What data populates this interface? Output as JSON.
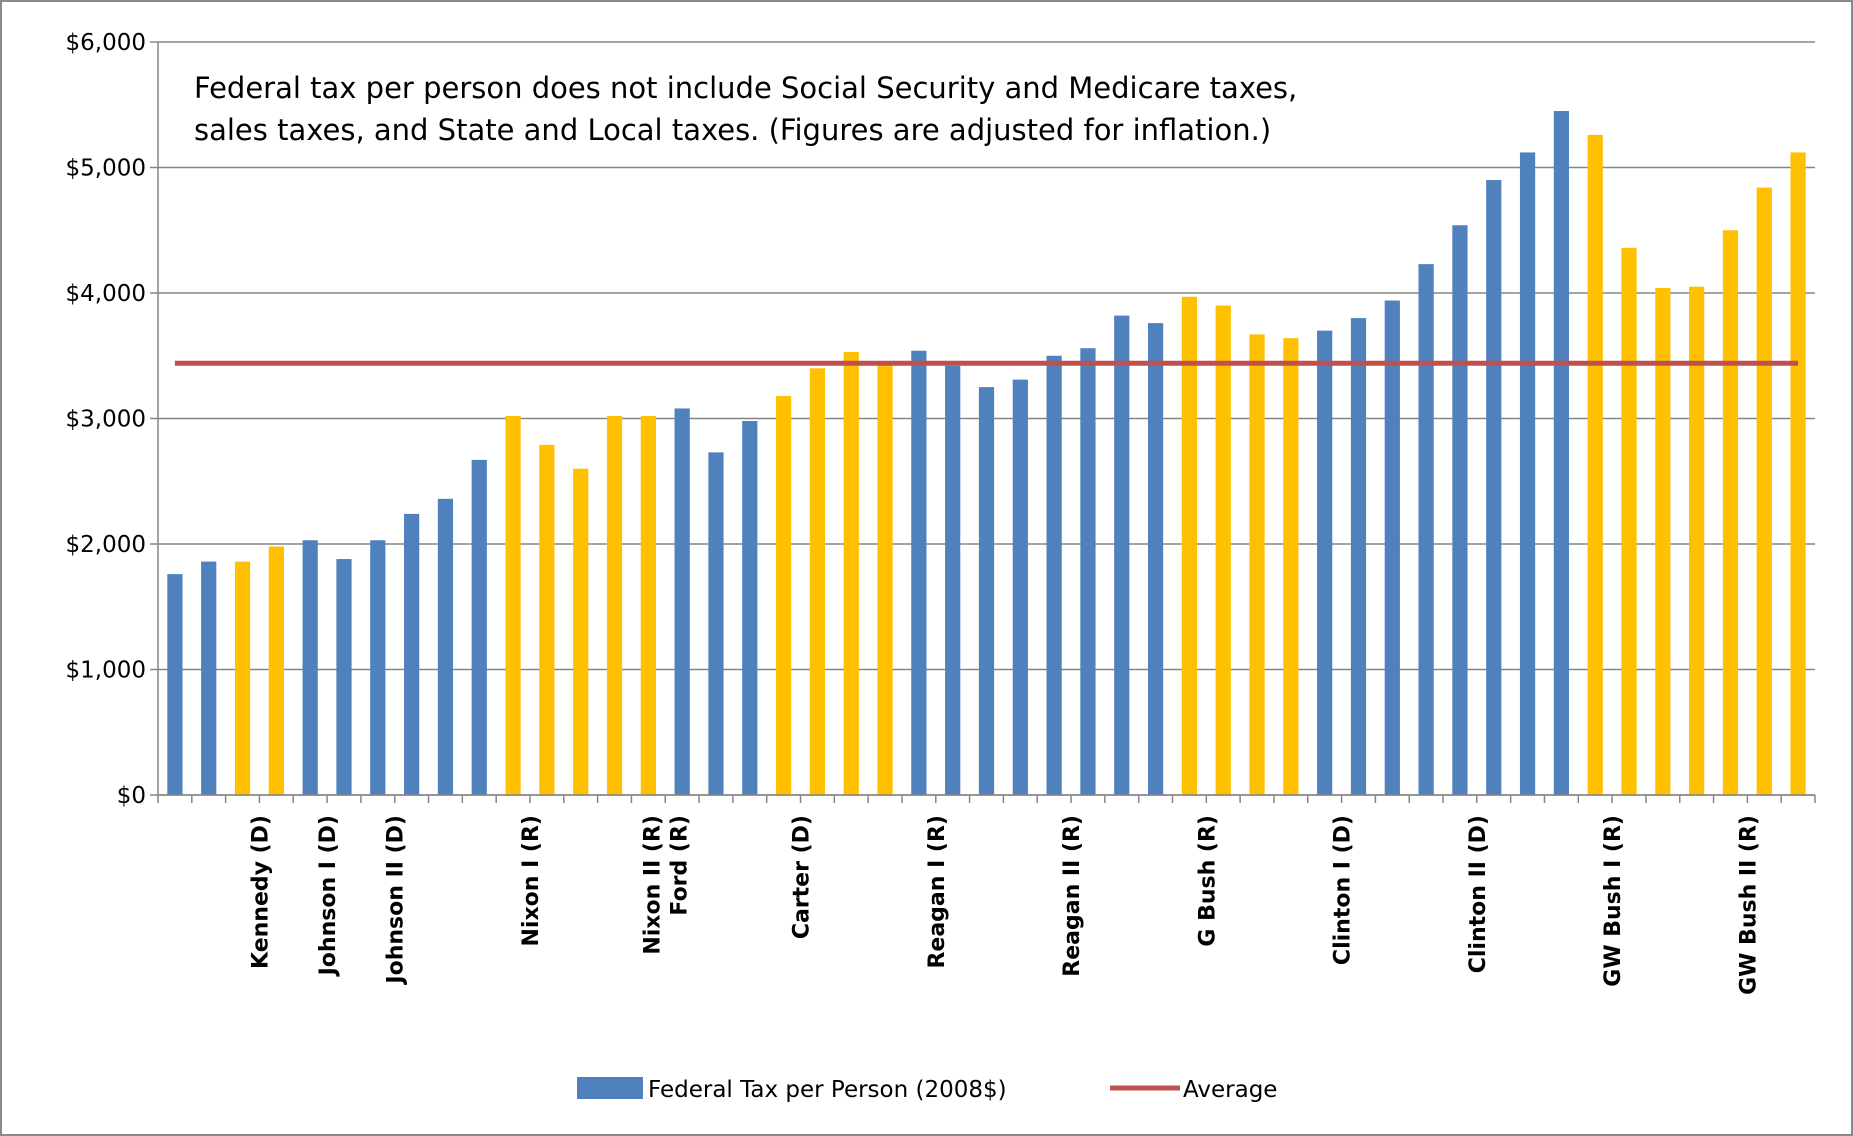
{
  "chart_data": {
    "type": "bar",
    "annotation": [
      "Federal tax per person does not include Social Security and Medicare taxes,",
      "sales taxes, and State and Local taxes. (Figures are adjusted for inflation.)"
    ],
    "ylim": [
      0,
      6000
    ],
    "y_ticks": [
      {
        "value": 0,
        "label": "$0"
      },
      {
        "value": 1000,
        "label": "$1,000"
      },
      {
        "value": 2000,
        "label": "$2,000"
      },
      {
        "value": 3000,
        "label": "$3,000"
      },
      {
        "value": 4000,
        "label": "$4,000"
      },
      {
        "value": 5000,
        "label": "$5,000"
      },
      {
        "value": 6000,
        "label": "$6,000"
      }
    ],
    "grid": true,
    "values": [
      1760,
      1860,
      1860,
      1980,
      2030,
      1880,
      2030,
      2240,
      2360,
      2670,
      3020,
      2790,
      2600,
      3020,
      3020,
      3080,
      2730,
      2980,
      3180,
      3400,
      3530,
      3450,
      3540,
      3420,
      3250,
      3310,
      3500,
      3560,
      3820,
      3760,
      3970,
      3900,
      3670,
      3640,
      3700,
      3800,
      3940,
      4230,
      4540,
      4900,
      5120,
      5450,
      5260,
      4360,
      4040,
      4050,
      4500,
      4840,
      5120
    ],
    "bar_colors": [
      "#4F81BD",
      "#4F81BD",
      "#FFC000",
      "#FFC000",
      "#4F81BD",
      "#4F81BD",
      "#4F81BD",
      "#4F81BD",
      "#4F81BD",
      "#4F81BD",
      "#FFC000",
      "#FFC000",
      "#FFC000",
      "#FFC000",
      "#FFC000",
      "#4F81BD",
      "#4F81BD",
      "#4F81BD",
      "#FFC000",
      "#FFC000",
      "#FFC000",
      "#FFC000",
      "#4F81BD",
      "#4F81BD",
      "#4F81BD",
      "#4F81BD",
      "#4F81BD",
      "#4F81BD",
      "#4F81BD",
      "#4F81BD",
      "#FFC000",
      "#FFC000",
      "#FFC000",
      "#FFC000",
      "#4F81BD",
      "#4F81BD",
      "#4F81BD",
      "#4F81BD",
      "#4F81BD",
      "#4F81BD",
      "#4F81BD",
      "#4F81BD",
      "#FFC000",
      "#FFC000",
      "#FFC000",
      "#FFC000",
      "#FFC000",
      "#FFC000",
      "#FFC000"
    ],
    "category_labels": [
      {
        "index": 2.5,
        "lines": [
          "Kennedy (D)"
        ]
      },
      {
        "index": 4.5,
        "lines": [
          "Johnson I (D)"
        ]
      },
      {
        "index": 6.5,
        "lines": [
          "Johnson II (D)"
        ]
      },
      {
        "index": 10.5,
        "lines": [
          "Nixon I (R)"
        ]
      },
      {
        "index": 14.5,
        "lines": [
          "Nixon II (R)",
          "Ford (R)"
        ]
      },
      {
        "index": 18.5,
        "lines": [
          "Carter (D)"
        ]
      },
      {
        "index": 22.5,
        "lines": [
          "Reagan I (R)"
        ]
      },
      {
        "index": 26.5,
        "lines": [
          "Reagan II (R)"
        ]
      },
      {
        "index": 30.5,
        "lines": [
          "G Bush (R)"
        ]
      },
      {
        "index": 34.5,
        "lines": [
          "Clinton I (D)"
        ]
      },
      {
        "index": 38.5,
        "lines": [
          "Clinton II (D)"
        ]
      },
      {
        "index": 42.5,
        "lines": [
          "GW Bush I (R)"
        ]
      },
      {
        "index": 46.5,
        "lines": [
          "GW Bush II (R)"
        ]
      }
    ],
    "series": [
      {
        "name": "Federal Tax per Person (2008$)",
        "type": "bar",
        "color": "#4F81BD"
      },
      {
        "name": "Average",
        "type": "line",
        "color": "#C0504D",
        "value": 3440
      }
    ],
    "legend_position": "bottom"
  }
}
